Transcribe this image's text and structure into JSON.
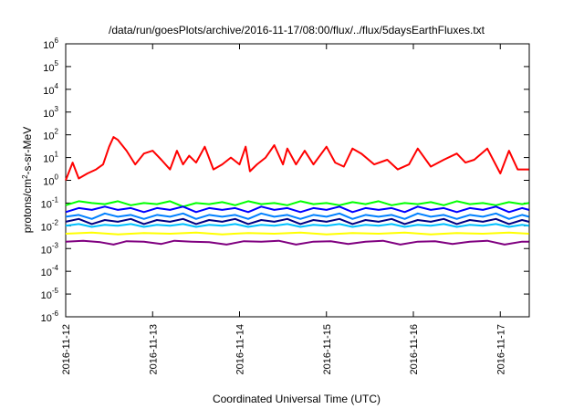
{
  "chart_data": {
    "type": "line",
    "title": "/data/run/goesPlots/archive/2016-11-17/08:00/flux/../flux/5daysEarthFluxes.txt",
    "xlabel": "Coordinated Universal Time (UTC)",
    "ylabel": {
      "pre": "protons/cm",
      "sup": "2",
      "post": "-s-sr-MeV"
    },
    "x_range": [
      "2016-11-12T00:00",
      "2016-11-17T08:00"
    ],
    "x_ticks": [
      "2016-11-12",
      "2016-11-13",
      "2016-11-14",
      "2016-11-15",
      "2016-11-16",
      "2016-11-17"
    ],
    "y_scale": "log",
    "ylim": [
      1e-06,
      1000000.0
    ],
    "y_ticks": [
      {
        "base": "10",
        "exp": "-6"
      },
      {
        "base": "10",
        "exp": "-5"
      },
      {
        "base": "10",
        "exp": "-4"
      },
      {
        "base": "10",
        "exp": "-3"
      },
      {
        "base": "10",
        "exp": "-2"
      },
      {
        "base": "10",
        "exp": "-1"
      },
      {
        "base": "10",
        "exp": "0"
      },
      {
        "base": "10",
        "exp": "1"
      },
      {
        "base": "10",
        "exp": "2"
      },
      {
        "base": "10",
        "exp": "3"
      },
      {
        "base": "10",
        "exp": "4"
      },
      {
        "base": "10",
        "exp": "5"
      },
      {
        "base": "10",
        "exp": "6"
      }
    ],
    "grid": false,
    "legend": false,
    "series": [
      {
        "color": "#ff0000",
        "x_days": [
          0.0,
          0.08,
          0.15,
          0.25,
          0.35,
          0.43,
          0.5,
          0.55,
          0.6,
          0.7,
          0.8,
          0.9,
          1.0,
          1.1,
          1.2,
          1.28,
          1.35,
          1.42,
          1.5,
          1.6,
          1.7,
          1.8,
          1.9,
          2.0,
          2.07,
          2.12,
          2.2,
          2.3,
          2.4,
          2.5,
          2.55,
          2.65,
          2.75,
          2.85,
          3.0,
          3.1,
          3.2,
          3.3,
          3.4,
          3.55,
          3.7,
          3.82,
          3.95,
          4.05,
          4.2,
          4.35,
          4.5,
          4.6,
          4.7,
          4.85,
          5.0,
          5.1,
          5.2,
          5.33
        ],
        "y": [
          1,
          6,
          1.2,
          2,
          3,
          5,
          30,
          80,
          60,
          20,
          5,
          15,
          20,
          8,
          3,
          20,
          5,
          12,
          6,
          30,
          3,
          5,
          10,
          5,
          30,
          2.5,
          5,
          10,
          35,
          5,
          25,
          5,
          20,
          5,
          30,
          6,
          4,
          25,
          15,
          5,
          8,
          3,
          5,
          25,
          4,
          8,
          15,
          6,
          8,
          25,
          2,
          20,
          3,
          3
        ]
      },
      {
        "color": "#00ff00",
        "x_days": [
          0.0,
          0.15,
          0.3,
          0.45,
          0.6,
          0.75,
          0.9,
          1.05,
          1.2,
          1.35,
          1.5,
          1.65,
          1.8,
          1.95,
          2.1,
          2.25,
          2.4,
          2.55,
          2.7,
          2.85,
          3.0,
          3.15,
          3.3,
          3.45,
          3.6,
          3.75,
          3.9,
          4.05,
          4.2,
          4.35,
          4.5,
          4.65,
          4.8,
          4.95,
          5.1,
          5.25,
          5.33
        ],
        "y": [
          0.08,
          0.12,
          0.1,
          0.09,
          0.12,
          0.08,
          0.1,
          0.09,
          0.12,
          0.07,
          0.1,
          0.09,
          0.11,
          0.08,
          0.12,
          0.09,
          0.1,
          0.08,
          0.12,
          0.09,
          0.1,
          0.08,
          0.11,
          0.09,
          0.12,
          0.08,
          0.1,
          0.09,
          0.11,
          0.08,
          0.12,
          0.09,
          0.1,
          0.08,
          0.11,
          0.09,
          0.1
        ]
      },
      {
        "color": "#0000ff",
        "x_days": [
          0.0,
          0.15,
          0.3,
          0.45,
          0.6,
          0.75,
          0.9,
          1.05,
          1.2,
          1.35,
          1.5,
          1.65,
          1.8,
          1.95,
          2.1,
          2.25,
          2.4,
          2.55,
          2.7,
          2.85,
          3.0,
          3.15,
          3.3,
          3.45,
          3.6,
          3.75,
          3.9,
          4.05,
          4.2,
          4.35,
          4.5,
          4.65,
          4.8,
          4.95,
          5.1,
          5.25,
          5.33
        ],
        "y": [
          0.04,
          0.06,
          0.05,
          0.07,
          0.05,
          0.06,
          0.04,
          0.06,
          0.05,
          0.07,
          0.04,
          0.06,
          0.05,
          0.06,
          0.04,
          0.07,
          0.05,
          0.06,
          0.04,
          0.06,
          0.05,
          0.07,
          0.04,
          0.06,
          0.05,
          0.06,
          0.04,
          0.07,
          0.05,
          0.06,
          0.04,
          0.06,
          0.05,
          0.07,
          0.04,
          0.06,
          0.05
        ]
      },
      {
        "color": "#0080ff",
        "x_days": [
          0.0,
          0.15,
          0.3,
          0.45,
          0.6,
          0.75,
          0.9,
          1.05,
          1.2,
          1.35,
          1.5,
          1.65,
          1.8,
          1.95,
          2.1,
          2.25,
          2.4,
          2.55,
          2.7,
          2.85,
          3.0,
          3.15,
          3.3,
          3.45,
          3.6,
          3.75,
          3.9,
          4.05,
          4.2,
          4.35,
          4.5,
          4.65,
          4.8,
          4.95,
          5.1,
          5.25,
          5.33
        ],
        "y": [
          0.025,
          0.03,
          0.02,
          0.035,
          0.025,
          0.03,
          0.02,
          0.03,
          0.025,
          0.035,
          0.02,
          0.03,
          0.025,
          0.03,
          0.02,
          0.035,
          0.025,
          0.03,
          0.02,
          0.03,
          0.025,
          0.035,
          0.02,
          0.03,
          0.025,
          0.03,
          0.02,
          0.035,
          0.025,
          0.03,
          0.02,
          0.03,
          0.025,
          0.035,
          0.02,
          0.03,
          0.025
        ]
      },
      {
        "color": "#000080",
        "x_days": [
          0.0,
          0.15,
          0.3,
          0.45,
          0.6,
          0.75,
          0.9,
          1.05,
          1.2,
          1.35,
          1.5,
          1.65,
          1.8,
          1.95,
          2.1,
          2.25,
          2.4,
          2.55,
          2.7,
          2.85,
          3.0,
          3.15,
          3.3,
          3.45,
          3.6,
          3.75,
          3.9,
          4.05,
          4.2,
          4.35,
          4.5,
          4.65,
          4.8,
          4.95,
          5.1,
          5.25,
          5.33
        ],
        "y": [
          0.015,
          0.02,
          0.012,
          0.018,
          0.015,
          0.02,
          0.012,
          0.018,
          0.015,
          0.02,
          0.012,
          0.018,
          0.015,
          0.02,
          0.012,
          0.018,
          0.015,
          0.02,
          0.012,
          0.018,
          0.015,
          0.02,
          0.012,
          0.018,
          0.015,
          0.02,
          0.012,
          0.018,
          0.015,
          0.02,
          0.012,
          0.018,
          0.015,
          0.02,
          0.012,
          0.018,
          0.015
        ]
      },
      {
        "color": "#00c0ff",
        "x_days": [
          0.0,
          0.15,
          0.3,
          0.45,
          0.6,
          0.75,
          0.9,
          1.05,
          1.2,
          1.35,
          1.5,
          1.65,
          1.8,
          1.95,
          2.1,
          2.25,
          2.4,
          2.55,
          2.7,
          2.85,
          3.0,
          3.15,
          3.3,
          3.45,
          3.6,
          3.75,
          3.9,
          4.05,
          4.2,
          4.35,
          4.5,
          4.65,
          4.8,
          4.95,
          5.1,
          5.25,
          5.33
        ],
        "y": [
          0.01,
          0.012,
          0.009,
          0.011,
          0.01,
          0.012,
          0.009,
          0.011,
          0.01,
          0.012,
          0.009,
          0.011,
          0.01,
          0.012,
          0.009,
          0.011,
          0.01,
          0.012,
          0.009,
          0.011,
          0.01,
          0.012,
          0.009,
          0.011,
          0.01,
          0.012,
          0.009,
          0.011,
          0.01,
          0.012,
          0.009,
          0.011,
          0.01,
          0.012,
          0.009,
          0.011,
          0.01
        ]
      },
      {
        "color": "#ffff00",
        "x_days": [
          0.0,
          0.3,
          0.6,
          0.9,
          1.2,
          1.5,
          1.8,
          2.1,
          2.4,
          2.7,
          3.0,
          3.3,
          3.6,
          3.9,
          4.2,
          4.5,
          4.8,
          5.1,
          5.33
        ],
        "y": [
          0.0045,
          0.005,
          0.0042,
          0.0048,
          0.0045,
          0.005,
          0.0042,
          0.0048,
          0.0045,
          0.005,
          0.0042,
          0.0048,
          0.0045,
          0.005,
          0.0042,
          0.0048,
          0.0045,
          0.005,
          0.0045
        ]
      },
      {
        "color": "#800080",
        "x_days": [
          0.0,
          0.2,
          0.4,
          0.55,
          0.7,
          0.9,
          1.1,
          1.25,
          1.45,
          1.65,
          1.85,
          2.05,
          2.25,
          2.45,
          2.65,
          2.85,
          3.05,
          3.25,
          3.45,
          3.65,
          3.85,
          4.05,
          4.25,
          4.45,
          4.65,
          4.85,
          5.05,
          5.25,
          5.33
        ],
        "y": [
          0.002,
          0.0022,
          0.0019,
          0.0015,
          0.0021,
          0.002,
          0.0016,
          0.0022,
          0.002,
          0.0019,
          0.0015,
          0.0021,
          0.002,
          0.0022,
          0.0015,
          0.002,
          0.0021,
          0.0016,
          0.002,
          0.0022,
          0.0015,
          0.002,
          0.0021,
          0.0016,
          0.002,
          0.0022,
          0.0015,
          0.002,
          0.002
        ]
      }
    ]
  }
}
